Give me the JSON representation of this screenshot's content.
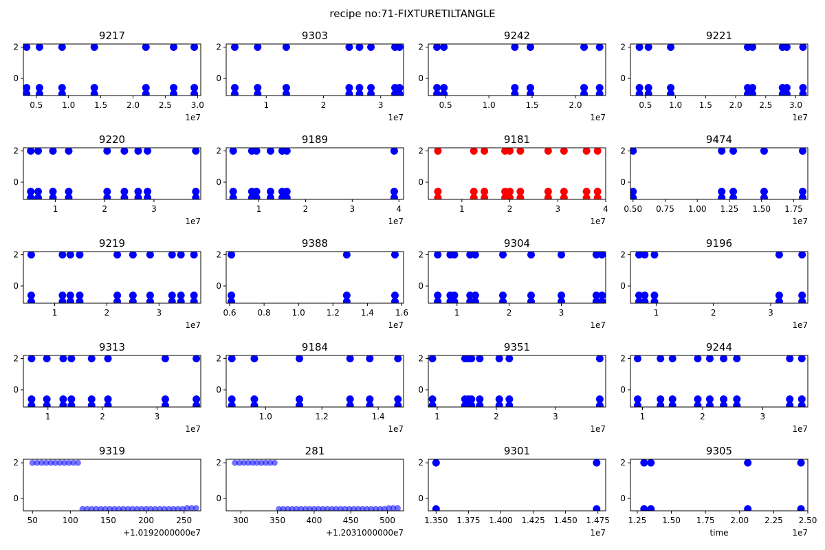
{
  "figure": {
    "title": "recipe no:71-FIXTURETILTANGLE"
  },
  "colors": {
    "normal": "#0000ff",
    "alert": "#ff0000"
  },
  "chart_data": [
    {
      "type": "scatter",
      "title": "9217",
      "xlim": [
        3.1,
        3.05
      ],
      "ylim": [
        -1.1,
        2.2
      ],
      "xticks": [
        0.5,
        1.0,
        1.5,
        2.0,
        2.5,
        3.0
      ],
      "xtick_labels": [
        "0.5",
        "1.0",
        "1.5",
        "2.0",
        "2.5",
        "3.0"
      ],
      "offset_label": "1e7",
      "yticks": [
        2,
        0
      ],
      "ytick_labels": [
        "2",
        "0"
      ],
      "color": "blue",
      "x": [
        0.35,
        0.55,
        0.9,
        1.4,
        2.2,
        2.63,
        2.95
      ],
      "y": [
        2,
        2,
        2,
        2,
        2,
        2,
        2
      ]
    },
    {
      "type": "scatter",
      "title": "9303",
      "xlim": [
        0.3,
        3.4
      ],
      "ylim": [
        -1.1,
        2.2
      ],
      "xticks": [
        1,
        2,
        3
      ],
      "xtick_labels": [
        "1",
        "2",
        "3"
      ],
      "offset_label": "1e7",
      "yticks": [
        2,
        0
      ],
      "ytick_labels": [
        "2",
        "0"
      ],
      "color": "blue",
      "x": [
        0.45,
        0.85,
        1.35,
        2.45,
        2.63,
        2.83,
        3.25,
        3.33
      ],
      "y": [
        2,
        2,
        2,
        2,
        2,
        2,
        2,
        2
      ]
    },
    {
      "type": "scatter",
      "title": "9242",
      "xlim": [
        0.3,
        2.35
      ],
      "ylim": [
        -1.1,
        2.2
      ],
      "xticks": [
        0.5,
        1.0,
        1.5,
        2.0
      ],
      "xtick_labels": [
        "0.5",
        "1.0",
        "1.5",
        "2.0"
      ],
      "offset_label": "1e7",
      "yticks": [
        2,
        0
      ],
      "ytick_labels": [
        "2",
        "0"
      ],
      "color": "blue",
      "x": [
        0.4,
        0.48,
        1.3,
        1.48,
        2.1,
        2.28
      ],
      "y": [
        2,
        2,
        2,
        2,
        2,
        2
      ]
    },
    {
      "type": "scatter",
      "title": "9221",
      "xlim": [
        0.25,
        3.2
      ],
      "ylim": [
        -1.1,
        2.2
      ],
      "xticks": [
        0.5,
        1.0,
        1.5,
        2.0,
        2.5,
        3.0
      ],
      "xtick_labels": [
        "0.5",
        "1.0",
        "1.5",
        "2.0",
        "2.5",
        "3.0"
      ],
      "offset_label": "1e7",
      "yticks": [
        2,
        0
      ],
      "ytick_labels": [
        "2",
        "0"
      ],
      "color": "blue",
      "x": [
        0.4,
        0.55,
        0.92,
        2.2,
        2.28,
        2.78,
        2.85,
        3.12
      ],
      "y": [
        2,
        2,
        2,
        2,
        2,
        2,
        2,
        2
      ]
    },
    {
      "type": "scatter",
      "title": "9220",
      "xlim": [
        0.35,
        3.95
      ],
      "ylim": [
        -1.1,
        2.2
      ],
      "xticks": [
        1,
        2,
        3
      ],
      "xtick_labels": [
        "1",
        "2",
        "3"
      ],
      "offset_label": "1e7",
      "yticks": [
        2,
        0
      ],
      "ytick_labels": [
        "2",
        "0"
      ],
      "color": "blue",
      "x": [
        0.5,
        0.65,
        0.95,
        1.27,
        2.05,
        2.4,
        2.68,
        2.87,
        3.85
      ],
      "y": [
        2,
        2,
        2,
        2,
        2,
        2,
        2,
        2,
        2
      ]
    },
    {
      "type": "scatter",
      "title": "9189",
      "xlim": [
        0.3,
        4.1
      ],
      "ylim": [
        -1.1,
        2.2
      ],
      "xticks": [
        1,
        2,
        3,
        4
      ],
      "xtick_labels": [
        "1",
        "2",
        "3",
        "4"
      ],
      "offset_label": "1e7",
      "yticks": [
        2,
        0
      ],
      "ytick_labels": [
        "2",
        "0"
      ],
      "color": "blue",
      "x": [
        0.45,
        0.85,
        0.95,
        1.25,
        1.5,
        1.6,
        3.9
      ],
      "y": [
        2,
        2,
        2,
        2,
        2,
        2,
        2
      ]
    },
    {
      "type": "scatter",
      "title": "9181",
      "xlim": [
        0.3,
        4.0
      ],
      "ylim": [
        -1.1,
        2.2
      ],
      "xticks": [
        1,
        2,
        3,
        4
      ],
      "xtick_labels": [
        "1",
        "2",
        "3",
        "4"
      ],
      "offset_label": "1e7",
      "yticks": [
        2,
        0
      ],
      "ytick_labels": [
        "2",
        "0"
      ],
      "color": "red",
      "x": [
        0.5,
        1.25,
        1.47,
        1.9,
        2.0,
        2.22,
        2.8,
        3.13,
        3.6,
        3.83
      ],
      "y": [
        2,
        2,
        2,
        2,
        2,
        2,
        2,
        2,
        2,
        2
      ]
    },
    {
      "type": "scatter",
      "title": "9474",
      "xlim": [
        0.48,
        1.86
      ],
      "ylim": [
        -1.1,
        2.2
      ],
      "xticks": [
        0.5,
        0.75,
        1.0,
        1.25,
        1.5,
        1.75
      ],
      "xtick_labels": [
        "0.50",
        "0.75",
        "1.00",
        "1.25",
        "1.50",
        "1.75"
      ],
      "offset_label": "1e7",
      "yticks": [
        2,
        0
      ],
      "ytick_labels": [
        "2",
        "0"
      ],
      "color": "blue",
      "x": [
        0.5,
        1.19,
        1.28,
        1.52,
        1.82
      ],
      "y": [
        2,
        2,
        2,
        2,
        2
      ]
    },
    {
      "type": "scatter",
      "title": "9219",
      "xlim": [
        0.4,
        3.8
      ],
      "ylim": [
        -1.1,
        2.2
      ],
      "xticks": [
        1,
        2,
        3
      ],
      "xtick_labels": [
        "1",
        "2",
        "3"
      ],
      "offset_label": "1e7",
      "yticks": [
        2,
        0
      ],
      "ytick_labels": [
        "2",
        "0"
      ],
      "color": "blue",
      "x": [
        0.55,
        1.15,
        1.3,
        1.48,
        2.2,
        2.5,
        2.83,
        3.25,
        3.42,
        3.67
      ],
      "y": [
        2,
        2,
        2,
        2,
        2,
        2,
        2,
        2,
        2,
        2
      ]
    },
    {
      "type": "scatter",
      "title": "9388",
      "xlim": [
        0.58,
        1.61
      ],
      "ylim": [
        -1.1,
        2.2
      ],
      "xticks": [
        0.6,
        0.8,
        1.0,
        1.2,
        1.4,
        1.6
      ],
      "xtick_labels": [
        "0.6",
        "0.8",
        "1.0",
        "1.2",
        "1.4",
        "1.6"
      ],
      "offset_label": "1e7",
      "yticks": [
        2,
        0
      ],
      "ytick_labels": [
        "2",
        "0"
      ],
      "color": "blue",
      "x": [
        0.61,
        1.28,
        1.56
      ],
      "y": [
        2,
        2,
        2
      ]
    },
    {
      "type": "scatter",
      "title": "9304",
      "xlim": [
        0.45,
        3.85
      ],
      "ylim": [
        -1.1,
        2.2
      ],
      "xticks": [
        1,
        2,
        3
      ],
      "xtick_labels": [
        "1",
        "2",
        "3"
      ],
      "offset_label": "1e7",
      "yticks": [
        2,
        0
      ],
      "ytick_labels": [
        "2",
        "0"
      ],
      "color": "blue",
      "x": [
        0.63,
        0.87,
        0.95,
        1.25,
        1.35,
        1.88,
        2.42,
        3.0,
        3.67,
        3.78
      ],
      "y": [
        2,
        2,
        2,
        2,
        2,
        2,
        2,
        2,
        2,
        2
      ]
    },
    {
      "type": "scatter",
      "title": "9196",
      "xlim": [
        0.55,
        3.65
      ],
      "ylim": [
        -1.1,
        2.2
      ],
      "xticks": [
        1,
        2,
        3
      ],
      "xtick_labels": [
        "1",
        "2",
        "3"
      ],
      "offset_label": "1e7",
      "yticks": [
        2,
        0
      ],
      "ytick_labels": [
        "2",
        "0"
      ],
      "color": "blue",
      "x": [
        0.7,
        0.8,
        0.97,
        3.15,
        3.55
      ],
      "y": [
        2,
        2,
        2,
        2,
        2
      ]
    },
    {
      "type": "scatter",
      "title": "9313",
      "xlim": [
        0.55,
        3.8
      ],
      "ylim": [
        -1.1,
        2.2
      ],
      "xticks": [
        1,
        2,
        3
      ],
      "xtick_labels": [
        "1",
        "2",
        "3"
      ],
      "offset_label": "1e7",
      "yticks": [
        2,
        0
      ],
      "ytick_labels": [
        "2",
        "0"
      ],
      "color": "blue",
      "x": [
        0.7,
        0.98,
        1.28,
        1.43,
        1.8,
        2.1,
        3.15,
        3.72
      ],
      "y": [
        2,
        2,
        2,
        2,
        2,
        2,
        2,
        2
      ]
    },
    {
      "type": "scatter",
      "title": "9184",
      "xlim": [
        0.86,
        1.49
      ],
      "ylim": [
        -1.1,
        2.2
      ],
      "xticks": [
        1.0,
        1.2,
        1.4
      ],
      "xtick_labels": [
        "1.0",
        "1.2",
        "1.4"
      ],
      "offset_label": "1e7",
      "yticks": [
        2,
        0
      ],
      "ytick_labels": [
        "2",
        "0"
      ],
      "color": "blue",
      "x": [
        0.88,
        0.96,
        1.12,
        1.3,
        1.37,
        1.47
      ],
      "y": [
        2,
        2,
        2,
        2,
        2,
        2
      ]
    },
    {
      "type": "scatter",
      "title": "9351",
      "xlim": [
        0.85,
        3.85
      ],
      "ylim": [
        -1.1,
        2.2
      ],
      "xticks": [
        1,
        2,
        3
      ],
      "xtick_labels": [
        "1",
        "2",
        "3"
      ],
      "offset_label": "1e7",
      "yticks": [
        2,
        0
      ],
      "ytick_labels": [
        "2",
        "0"
      ],
      "color": "blue",
      "x": [
        0.92,
        1.47,
        1.53,
        1.58,
        1.72,
        2.05,
        2.22,
        3.75
      ],
      "y": [
        2,
        2,
        2,
        2,
        2,
        2,
        2,
        2
      ]
    },
    {
      "type": "scatter",
      "title": "9244",
      "xlim": [
        0.8,
        3.75
      ],
      "ylim": [
        -1.1,
        2.2
      ],
      "xticks": [
        1,
        2,
        3
      ],
      "xtick_labels": [
        "1",
        "2",
        "3"
      ],
      "offset_label": "1e7",
      "yticks": [
        2,
        0
      ],
      "ytick_labels": [
        "2",
        "0"
      ],
      "color": "blue",
      "x": [
        0.92,
        1.3,
        1.5,
        1.92,
        2.12,
        2.35,
        2.57,
        3.45,
        3.65
      ],
      "y": [
        2,
        2,
        2,
        2,
        2,
        2,
        2,
        2,
        2
      ]
    },
    {
      "type": "scatter",
      "title": "9319",
      "xlim": [
        38,
        272
      ],
      "ylim": [
        -0.7,
        2.2
      ],
      "xticks": [
        50,
        100,
        150,
        200,
        250
      ],
      "xtick_labels": [
        "50",
        "100",
        "150",
        "200",
        "250"
      ],
      "offset_label": "+1.0192000000e7",
      "yticks": [
        2,
        0
      ],
      "ytick_labels": [
        "2",
        "0"
      ],
      "color": "blue",
      "marker_alpha": 0.55,
      "x": [
        50,
        56,
        62,
        68,
        74,
        80,
        86,
        92,
        98,
        104,
        110,
        116,
        122,
        128,
        134,
        140,
        146,
        152,
        158,
        164,
        170,
        176,
        182,
        188,
        194,
        200,
        206,
        212,
        218,
        224,
        230,
        236,
        242,
        248,
        254,
        260,
        266
      ],
      "y": [
        2,
        2,
        2,
        2,
        2,
        2,
        2,
        2,
        2,
        2,
        2,
        -0.6,
        -0.6,
        -0.6,
        -0.6,
        -0.6,
        -0.6,
        -0.6,
        -0.6,
        -0.6,
        -0.6,
        -0.6,
        -0.6,
        -0.6,
        -0.6,
        -0.6,
        -0.6,
        -0.6,
        -0.6,
        -0.6,
        -0.6,
        -0.6,
        -0.6,
        -0.6,
        -0.55,
        -0.55,
        -0.55
      ]
    },
    {
      "type": "scatter",
      "title": "281",
      "xlim": [
        280,
        522
      ],
      "ylim": [
        -0.7,
        2.2
      ],
      "xticks": [
        300,
        350,
        400,
        450,
        500
      ],
      "xtick_labels": [
        "300",
        "350",
        "400",
        "450",
        "500"
      ],
      "offset_label": "+1.2031000000e7",
      "yticks": [
        2,
        0
      ],
      "ytick_labels": [
        "2",
        "0"
      ],
      "color": "blue",
      "marker_alpha": 0.55,
      "x": [
        292,
        298,
        304,
        310,
        316,
        322,
        328,
        334,
        340,
        346,
        352,
        358,
        364,
        370,
        376,
        382,
        388,
        394,
        400,
        406,
        412,
        418,
        424,
        430,
        436,
        442,
        448,
        454,
        460,
        466,
        472,
        478,
        484,
        490,
        496,
        502,
        508,
        514
      ],
      "y": [
        2,
        2,
        2,
        2,
        2,
        2,
        2,
        2,
        2,
        2,
        -0.6,
        -0.6,
        -0.6,
        -0.6,
        -0.6,
        -0.6,
        -0.6,
        -0.6,
        -0.6,
        -0.6,
        -0.6,
        -0.6,
        -0.6,
        -0.6,
        -0.6,
        -0.6,
        -0.6,
        -0.6,
        -0.6,
        -0.6,
        -0.6,
        -0.6,
        -0.6,
        -0.6,
        -0.6,
        -0.55,
        -0.55,
        -0.55
      ]
    },
    {
      "type": "scatter",
      "title": "9301",
      "xlim": [
        1.344,
        1.481
      ],
      "ylim": [
        -0.7,
        2.2
      ],
      "xticks": [
        1.35,
        1.375,
        1.4,
        1.425,
        1.45,
        1.475
      ],
      "xtick_labels": [
        "1.350",
        "1.375",
        "1.400",
        "1.425",
        "1.450",
        "1.475"
      ],
      "offset_label": "1e7",
      "yticks": [
        2,
        0
      ],
      "ytick_labels": [
        "2",
        "0"
      ],
      "color": "blue",
      "x": [
        1.35,
        1.474
      ],
      "y": [
        2,
        2
      ]
    },
    {
      "type": "scatter",
      "title": "9305",
      "xlim": [
        1.2,
        2.5
      ],
      "ylim": [
        -0.7,
        2.2
      ],
      "xticks": [
        1.25,
        1.5,
        1.75,
        2.0,
        2.25,
        2.5
      ],
      "xtick_labels": [
        "1.25",
        "1.50",
        "1.75",
        "2.00",
        "2.25",
        "2.50"
      ],
      "offset_label": "1e7",
      "xlabel": "time",
      "yticks": [
        2,
        0
      ],
      "ytick_labels": [
        "2",
        "0"
      ],
      "color": "blue",
      "x": [
        1.3,
        1.35,
        2.06,
        2.45
      ],
      "y": [
        2,
        2,
        2,
        2
      ]
    }
  ]
}
